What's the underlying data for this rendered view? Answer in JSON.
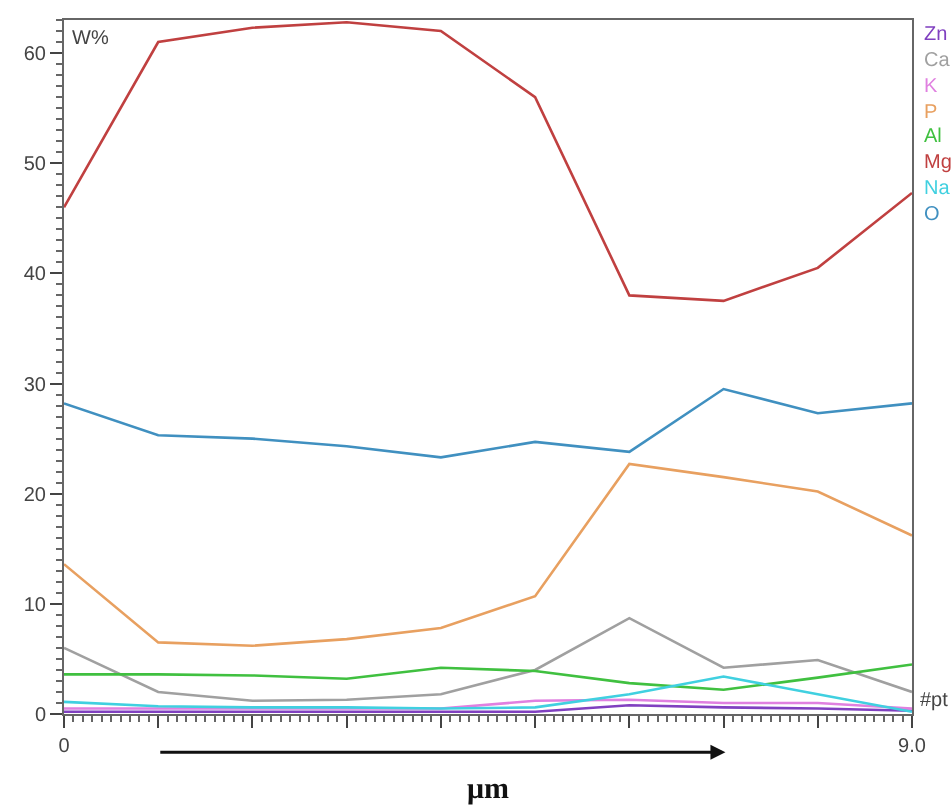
{
  "chart_data": {
    "type": "line",
    "ylabel": "W%",
    "xlabel": "μm",
    "annotations": [
      "#pt"
    ],
    "x": [
      0,
      1,
      2,
      3,
      4,
      5,
      6,
      7,
      8,
      9
    ],
    "xlim": [
      0,
      9
    ],
    "xticks": [
      0,
      {
        "value": 1,
        "label": null
      },
      {
        "value": 2,
        "label": null
      },
      {
        "value": 3,
        "label": null
      },
      {
        "value": 4,
        "label": null
      },
      {
        "value": 5,
        "label": null
      },
      {
        "value": 6,
        "label": null
      },
      {
        "value": 7,
        "label": null
      },
      {
        "value": 8,
        "label": null
      },
      {
        "value": 9,
        "label": "9.0"
      }
    ],
    "ylim": [
      0,
      63
    ],
    "yticks": [
      0,
      10,
      20,
      30,
      40,
      50,
      60
    ],
    "grid": false,
    "legend": "top right",
    "marker": "none",
    "line_style": "solid",
    "series": [
      {
        "name": "Zn",
        "color": "#8040c0",
        "values": [
          0.2,
          0.2,
          0.2,
          0.2,
          0.2,
          0.2,
          0.8,
          0.6,
          0.5,
          0.3
        ]
      },
      {
        "name": "Ca",
        "color": "#a0a0a0",
        "values": [
          6,
          2,
          1.2,
          1.3,
          1.8,
          4,
          8.7,
          4.2,
          4.9,
          2
        ]
      },
      {
        "name": "K",
        "color": "#e080e0",
        "values": [
          0.5,
          0.5,
          0.5,
          0.5,
          0.5,
          1.2,
          1.3,
          1,
          1,
          0.5
        ]
      },
      {
        "name": "P",
        "color": "#e8a060",
        "values": [
          13.6,
          6.5,
          6.2,
          6.8,
          7.8,
          10.7,
          22.7,
          21.5,
          20.2,
          16.2
        ]
      },
      {
        "name": "Al",
        "color": "#40c040",
        "values": [
          3.6,
          3.6,
          3.5,
          3.2,
          4.2,
          3.9,
          2.8,
          2.2,
          3.3,
          4.5
        ]
      },
      {
        "name": "Mg",
        "color": "#c04040",
        "values": [
          46,
          61,
          62.3,
          62.8,
          62,
          56,
          38,
          37.5,
          40.5,
          47.3
        ]
      },
      {
        "name": "Na",
        "color": "#40d0e0",
        "values": [
          1.1,
          0.7,
          0.6,
          0.6,
          0.5,
          0.6,
          1.8,
          3.4,
          1.8,
          0.2
        ]
      },
      {
        "name": "O",
        "color": "#4090c0",
        "values": [
          28.2,
          25.3,
          25,
          24.3,
          23.3,
          24.7,
          23.8,
          29.5,
          27.3,
          28.2
        ]
      }
    ]
  }
}
